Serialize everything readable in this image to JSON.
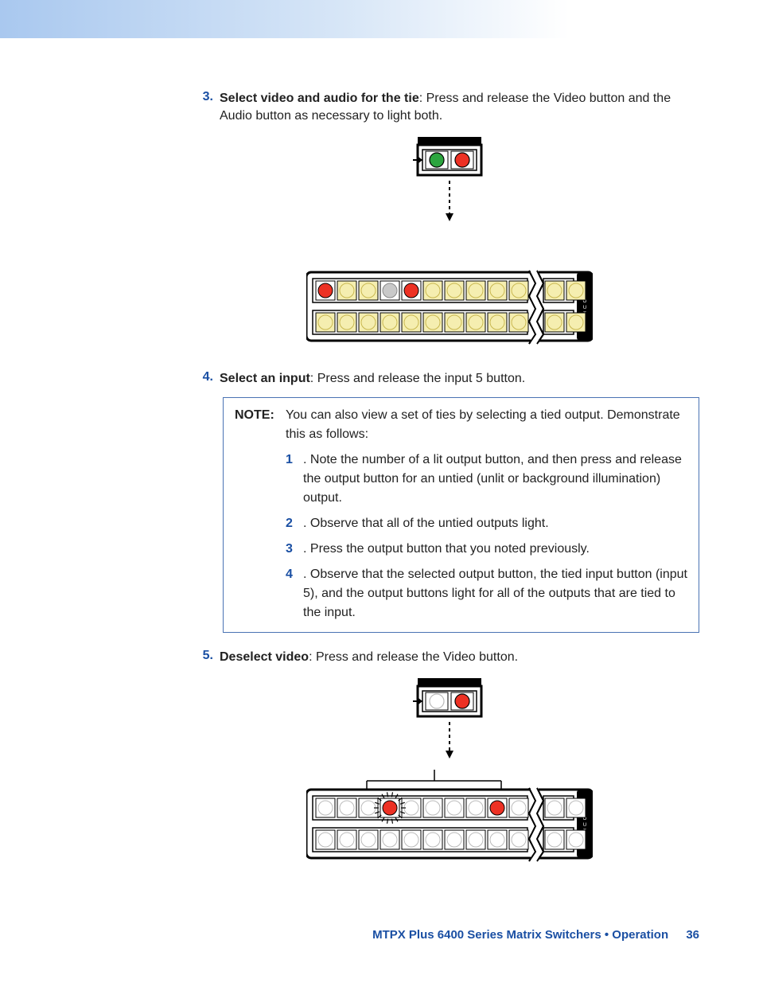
{
  "colors": {
    "accent_blue": "#1a4fa3",
    "note_border": "#4a73b3",
    "button_yellow": "#f5eeb0",
    "button_red": "#e2231a",
    "button_red_fill": "#ed3124",
    "button_green": "#2da53f",
    "button_grey": "#c9c9c9",
    "panel_black": "#000000",
    "panel_white": "#ffffff",
    "outline": "#000000"
  },
  "steps": {
    "s3": {
      "num": "3.",
      "bold": "Select video and audio for the tie",
      "rest": ": Press and release the Video button and the Audio button as necessary to light both."
    },
    "s4": {
      "num": "4.",
      "bold": "Select an input",
      "rest": ": Press and release the input 5 button."
    },
    "s5": {
      "num": "5.",
      "bold": "Deselect video",
      "rest": ": Press and release the Video button."
    }
  },
  "figure1": {
    "small_panel": {
      "left_color": "#2da53f",
      "right_color": "#ed3124"
    },
    "strip": {
      "top_row_colors": [
        "#ed3124",
        "#f5eeb0",
        "#f5eeb0",
        "#c9c9c9",
        "#ed3124",
        "#f5eeb0",
        "#f5eeb0",
        "#f5eeb0",
        "#f5eeb0",
        "#f5eeb0",
        "break",
        "#f5eeb0",
        "#f5eeb0"
      ],
      "bottom_row_colors": [
        "#f5eeb0",
        "#f5eeb0",
        "#f5eeb0",
        "#f5eeb0",
        "#f5eeb0",
        "#f5eeb0",
        "#f5eeb0",
        "#f5eeb0",
        "#f5eeb0",
        "#f5eeb0",
        "break",
        "#f5eeb0",
        "#f5eeb0"
      ],
      "end_label": "OUT"
    }
  },
  "figure2": {
    "small_panel": {
      "left_color": "none",
      "right_color": "#ed3124"
    },
    "strip": {
      "top_row_colors": [
        "grey",
        "grey",
        "grey",
        "#ed3124",
        "grey",
        "grey",
        "grey",
        "grey",
        "#ed3124",
        "grey",
        "break",
        "grey",
        "grey"
      ],
      "bottom_row_colors": [
        "grey",
        "grey",
        "grey",
        "grey",
        "grey",
        "grey",
        "grey",
        "grey",
        "grey",
        "grey",
        "break",
        "grey",
        "grey"
      ],
      "highlight_index": 3,
      "end_label": "OUT"
    }
  },
  "note": {
    "label": "NOTE:",
    "intro": "You can also view a set of ties by selecting a tied output. Demonstrate this as follows:",
    "items": [
      {
        "n": "1",
        "t": ".  Note the number of a lit output button, and then press and release the output button for an untied (unlit or background illumination) output."
      },
      {
        "n": "2",
        "t": ".  Observe that all of the untied outputs light."
      },
      {
        "n": "3",
        "t": ".  Press the output button that you noted previously."
      },
      {
        "n": "4",
        "t": ".  Observe that the selected output button, the tied input button (input 5), and the output buttons light for all of the outputs that are tied to the input."
      }
    ]
  },
  "footer": {
    "text": "MTPX Plus 6400 Series Matrix Switchers • Operation",
    "page": "36"
  }
}
